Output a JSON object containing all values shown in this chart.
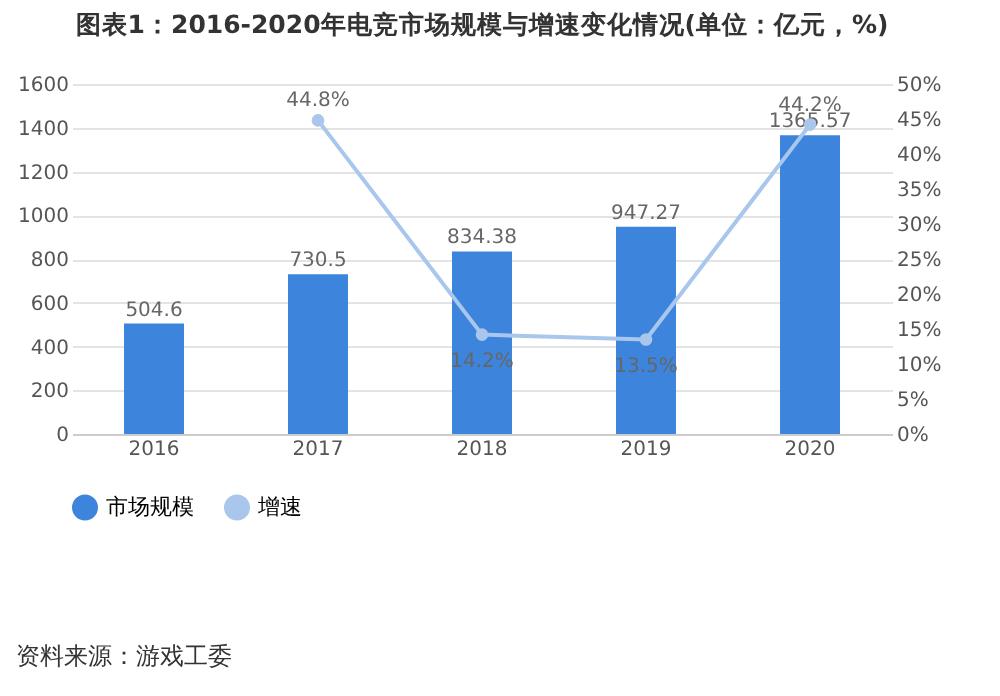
{
  "chart_data": {
    "type": "bar",
    "title": "图表1：2016-2020年电竞市场规模与增速变化情况(单位：亿元，%)",
    "categories": [
      "2016",
      "2017",
      "2018",
      "2019",
      "2020"
    ],
    "series": [
      {
        "name": "市场规模",
        "color": "#3d85dc",
        "values": [
          504.6,
          730.5,
          834.38,
          947.27,
          1365.57
        ],
        "value_labels": [
          "504.6",
          "730.5",
          "834.38",
          "947.27",
          "1365.57"
        ]
      },
      {
        "name": "增速",
        "type": "line",
        "axis": "y2",
        "color": "#a9c6ec",
        "values": [
          null,
          44.8,
          14.2,
          13.5,
          44.2
        ],
        "value_labels": [
          null,
          "44.8%",
          "14.2%",
          "13.5%",
          "44.2%"
        ]
      }
    ],
    "ylim": [
      0,
      1600
    ],
    "yticks": [
      0,
      200,
      400,
      600,
      800,
      1000,
      1200,
      1400,
      1600
    ],
    "y2lim": [
      0,
      50
    ],
    "y2ticks": [
      {
        "value": 0,
        "label": "0%"
      },
      {
        "value": 5,
        "label": "5%"
      },
      {
        "value": 10,
        "label": "10%"
      },
      {
        "value": 15,
        "label": "15%"
      },
      {
        "value": 20,
        "label": "20%"
      },
      {
        "value": 25,
        "label": "25%"
      },
      {
        "value": 30,
        "label": "30%"
      },
      {
        "value": 35,
        "label": "35%"
      },
      {
        "value": 40,
        "label": "40%"
      },
      {
        "value": 45,
        "label": "45%"
      },
      {
        "value": 50,
        "label": "50%"
      }
    ],
    "grid": "y",
    "legend": "bottom",
    "marker": "circle",
    "annotations": [
      "资料来源：游戏工委"
    ]
  }
}
